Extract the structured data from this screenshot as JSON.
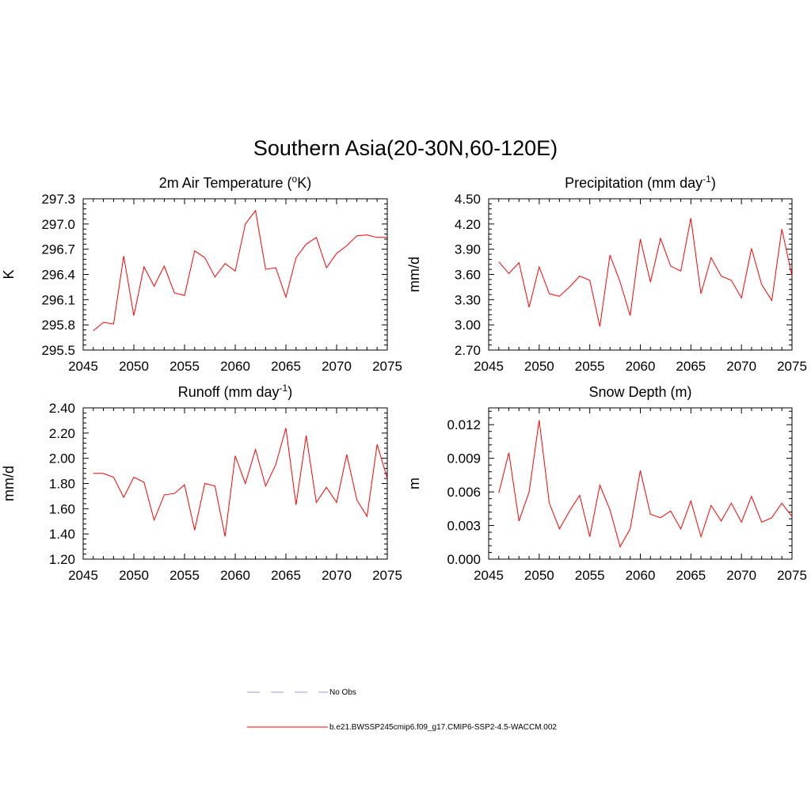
{
  "figure": {
    "title": "Southern Asia(20-30N,60-120E)"
  },
  "legend": {
    "entries": [
      {
        "label": "No Obs",
        "color": "#9999dd",
        "style": "dashed"
      },
      {
        "label": "b.e21.BWSSP245cmip6.f09_g17.CMIP6-SSP2-4.5-WACCM.002",
        "color": "#ff0000",
        "style": "solid"
      }
    ]
  },
  "chart_data": [
    {
      "type": "line",
      "title": "2m Air Temperature (",
      "title_sup": "o",
      "title_after": "K)",
      "ylabel": "K",
      "xlabel": "",
      "xlim": [
        2045,
        2075
      ],
      "ylim": [
        295.5,
        297.3
      ],
      "xticks": [
        "2045",
        "2050",
        "2055",
        "2060",
        "2065",
        "2070",
        "2075"
      ],
      "yticks": [
        "295.5",
        "295.8",
        "296.1",
        "296.4",
        "296.7",
        "297.0",
        "297.3"
      ],
      "ytick_values": [
        295.5,
        295.8,
        296.1,
        296.4,
        296.7,
        297.0,
        297.3
      ],
      "color": "#ff0000",
      "x": [
        2046,
        2047,
        2048,
        2049,
        2050,
        2051,
        2052,
        2053,
        2054,
        2055,
        2056,
        2057,
        2058,
        2059,
        2060,
        2061,
        2062,
        2063,
        2064,
        2065,
        2066,
        2067,
        2068,
        2069,
        2070,
        2071,
        2072,
        2073,
        2074,
        2075
      ],
      "values": [
        295.73,
        295.83,
        295.81,
        296.62,
        295.91,
        296.49,
        296.26,
        296.5,
        296.18,
        296.15,
        296.68,
        296.6,
        296.37,
        296.53,
        296.44,
        297.0,
        297.16,
        296.46,
        296.48,
        296.13,
        296.6,
        296.76,
        296.84,
        296.48,
        296.65,
        296.74,
        296.86,
        296.87,
        296.84,
        296.84
      ]
    },
    {
      "type": "line",
      "title": "Precipitation (mm day",
      "title_sup": "-1",
      "title_after": ")",
      "ylabel": "mm/d",
      "xlabel": "",
      "xlim": [
        2045,
        2075
      ],
      "ylim": [
        2.7,
        4.5
      ],
      "xticks": [
        "2045",
        "2050",
        "2055",
        "2060",
        "2065",
        "2070",
        "2075"
      ],
      "yticks": [
        "2.70",
        "3.00",
        "3.30",
        "3.60",
        "3.90",
        "4.20",
        "4.50"
      ],
      "ytick_values": [
        2.7,
        3.0,
        3.3,
        3.6,
        3.9,
        4.2,
        4.5
      ],
      "color": "#ff0000",
      "x": [
        2046,
        2047,
        2048,
        2049,
        2050,
        2051,
        2052,
        2053,
        2054,
        2055,
        2056,
        2057,
        2058,
        2059,
        2060,
        2061,
        2062,
        2063,
        2064,
        2065,
        2066,
        2067,
        2068,
        2069,
        2070,
        2071,
        2072,
        2073,
        2074,
        2075
      ],
      "values": [
        3.75,
        3.61,
        3.74,
        3.21,
        3.69,
        3.37,
        3.34,
        3.45,
        3.58,
        3.53,
        2.98,
        3.83,
        3.51,
        3.11,
        4.02,
        3.51,
        4.03,
        3.7,
        3.64,
        4.27,
        3.37,
        3.8,
        3.58,
        3.53,
        3.32,
        3.91,
        3.48,
        3.29,
        4.14,
        3.58
      ]
    },
    {
      "type": "line",
      "title": "Runoff (mm day",
      "title_sup": "-1",
      "title_after": ")",
      "ylabel": "mm/d",
      "xlabel": "",
      "xlim": [
        2045,
        2075
      ],
      "ylim": [
        1.2,
        2.4
      ],
      "xticks": [
        "2045",
        "2050",
        "2055",
        "2060",
        "2065",
        "2070",
        "2075"
      ],
      "yticks": [
        "1.20",
        "1.40",
        "1.60",
        "1.80",
        "2.00",
        "2.20",
        "2.40"
      ],
      "ytick_values": [
        1.2,
        1.4,
        1.6,
        1.8,
        2.0,
        2.2,
        2.4
      ],
      "color": "#ff0000",
      "x": [
        2046,
        2047,
        2048,
        2049,
        2050,
        2051,
        2052,
        2053,
        2054,
        2055,
        2056,
        2057,
        2058,
        2059,
        2060,
        2061,
        2062,
        2063,
        2064,
        2065,
        2066,
        2067,
        2068,
        2069,
        2070,
        2071,
        2072,
        2073,
        2074,
        2075
      ],
      "values": [
        1.88,
        1.88,
        1.85,
        1.69,
        1.85,
        1.81,
        1.51,
        1.71,
        1.72,
        1.79,
        1.43,
        1.8,
        1.78,
        1.38,
        2.02,
        1.8,
        2.07,
        1.78,
        1.95,
        2.24,
        1.63,
        2.18,
        1.65,
        1.77,
        1.65,
        2.03,
        1.67,
        1.54,
        2.11,
        1.84
      ]
    },
    {
      "type": "line",
      "title": "Snow Depth (m)",
      "title_sup": "",
      "title_after": "",
      "ylabel": "m",
      "xlabel": "",
      "xlim": [
        2045,
        2075
      ],
      "ylim": [
        0.0,
        0.0135
      ],
      "xticks": [
        "2045",
        "2050",
        "2055",
        "2060",
        "2065",
        "2070",
        "2075"
      ],
      "yticks": [
        "0.000",
        "0.003",
        "0.006",
        "0.009",
        "0.012"
      ],
      "ytick_values": [
        0.0,
        0.003,
        0.006,
        0.009,
        0.012
      ],
      "color": "#ff0000",
      "x": [
        2046,
        2047,
        2048,
        2049,
        2050,
        2051,
        2052,
        2053,
        2054,
        2055,
        2056,
        2057,
        2058,
        2059,
        2060,
        2061,
        2062,
        2063,
        2064,
        2065,
        2066,
        2067,
        2068,
        2069,
        2070,
        2071,
        2072,
        2073,
        2074,
        2075
      ],
      "values": [
        0.0059,
        0.0095,
        0.0034,
        0.006,
        0.0124,
        0.005,
        0.0027,
        0.0043,
        0.0057,
        0.002,
        0.0066,
        0.0044,
        0.0011,
        0.0027,
        0.0079,
        0.004,
        0.0037,
        0.0043,
        0.0027,
        0.0052,
        0.002,
        0.0048,
        0.0034,
        0.005,
        0.0033,
        0.0056,
        0.0033,
        0.0037,
        0.005,
        0.0038
      ]
    }
  ]
}
